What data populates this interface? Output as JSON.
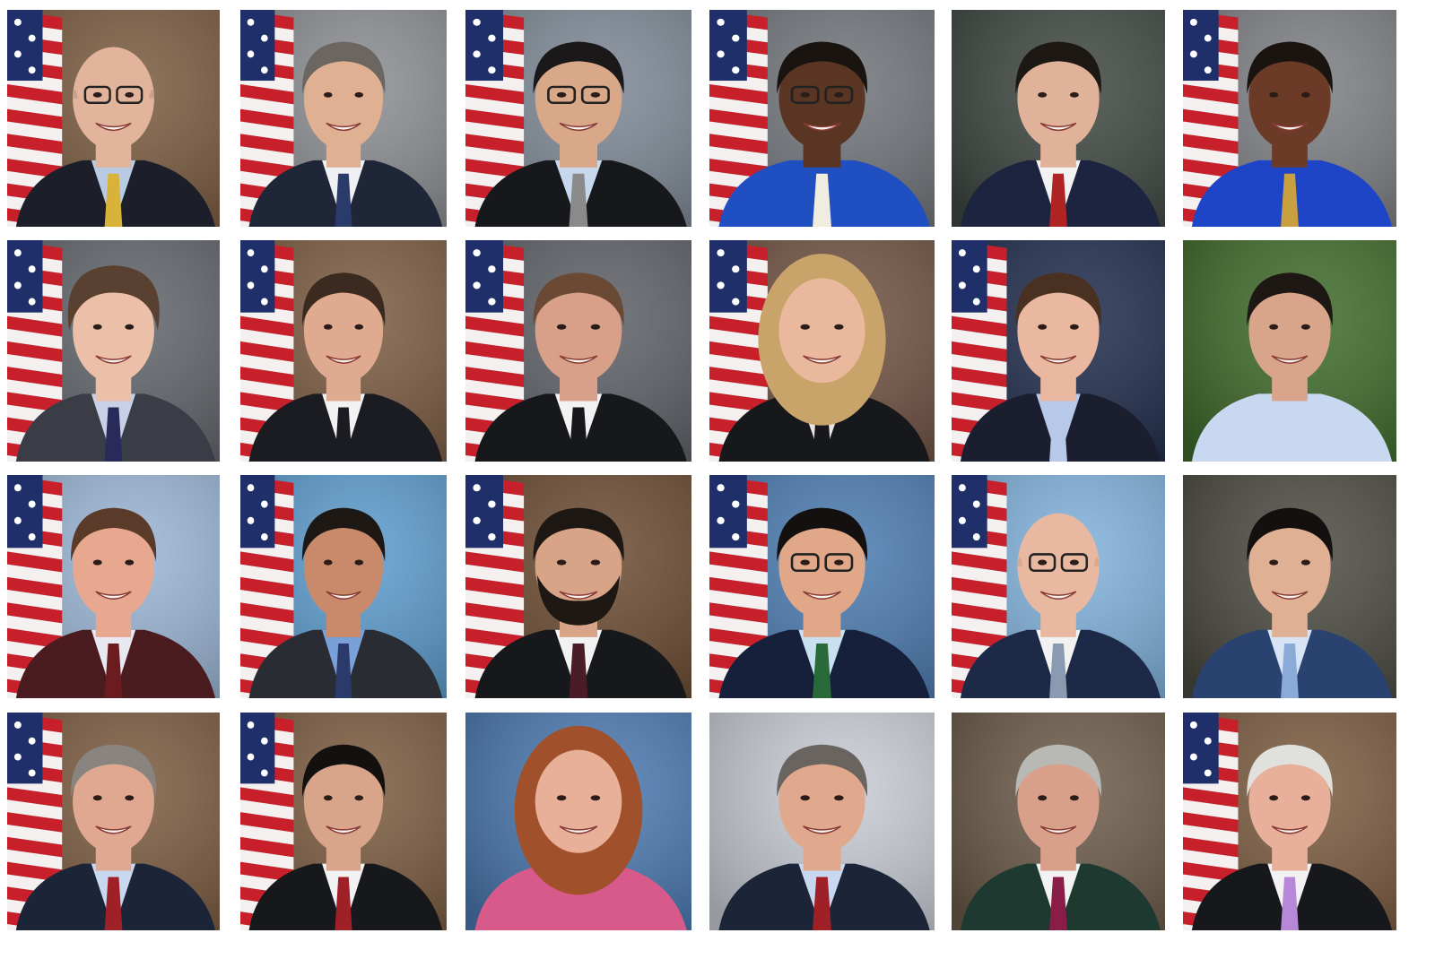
{
  "collage": {
    "columns": 6,
    "rows": 4,
    "background": "#ffffff",
    "portraits": [
      {
        "bg": "#7a5a3e",
        "flag": true,
        "hair": "bald",
        "hairColor": "#c9a08a",
        "skin": "#e2b49c",
        "suit": "#1c1f2a",
        "shirt": "#b9cbe3",
        "tie": "#d9b23a",
        "glasses": true
      },
      {
        "bg": "#8a8c90",
        "flag": true,
        "hair": "short",
        "hairColor": "#6b6660",
        "skin": "#e0b092",
        "suit": "#1e2638",
        "shirt": "#eef0f4",
        "tie": "#2a3a6a",
        "glasses": false
      },
      {
        "bg": "#7d8794",
        "flag": true,
        "hair": "short",
        "hairColor": "#1a1818",
        "skin": "#d9a888",
        "suit": "#16181c",
        "shirt": "#c8d8ec",
        "tie": "#8a8a8a",
        "glasses": true
      },
      {
        "bg": "#6f7378",
        "flag": true,
        "hair": "short",
        "hairColor": "#1a1410",
        "skin": "#5a3524",
        "suit": "#1f4fc0",
        "shirt": "#1f4fc0",
        "tie": "#f0ece0",
        "glasses": true
      },
      {
        "bg": "#3e4640",
        "flag": false,
        "hair": "short",
        "hairColor": "#1e1814",
        "skin": "#e0b29a",
        "suit": "#1c2440",
        "shirt": "#f2f2f2",
        "tie": "#b02424",
        "glasses": false
      },
      {
        "bg": "#7c7e82",
        "flag": true,
        "hair": "short",
        "hairColor": "#1a1410",
        "skin": "#6b3b28",
        "suit": "#1e45c8",
        "shirt": "#1e45c8",
        "tie": "#c8a040",
        "glasses": false
      },
      {
        "bg": "#5f6368",
        "flag": true,
        "hair": "curly",
        "hairColor": "#5a4030",
        "skin": "#ecc0a8",
        "suit": "#3a3d45",
        "shirt": "#c8d0e8",
        "tie": "#2a2a5a",
        "glasses": false
      },
      {
        "bg": "#7a5a40",
        "flag": true,
        "hair": "short",
        "hairColor": "#3a2a20",
        "skin": "#e0aa90",
        "suit": "#1a1c22",
        "shirt": "#f2f2f2",
        "tie": "#1a1c22",
        "glasses": false
      },
      {
        "bg": "#5c5f66",
        "flag": true,
        "hair": "short",
        "hairColor": "#6a4a34",
        "skin": "#d8a088",
        "suit": "#16181c",
        "shirt": "#f2f2f2",
        "tie": "#16181c",
        "glasses": false
      },
      {
        "bg": "#6e5040",
        "flag": true,
        "hair": "long",
        "hairColor": "#c8a46a",
        "skin": "#eab89c",
        "suit": "#16181c",
        "shirt": "#e8e4e0",
        "tie": "#16181c",
        "glasses": false
      },
      {
        "bg": "#1e2a4a",
        "flag": true,
        "hair": "short",
        "hairColor": "#4a3020",
        "skin": "#eab8a0",
        "suit": "#1a1e2e",
        "shirt": "#b8c8e8",
        "tie": "#b8c8e8",
        "glasses": false
      },
      {
        "bg": "#3e6a2a",
        "flag": false,
        "hair": "short",
        "hairColor": "#1e1814",
        "skin": "#d8a48a",
        "suit": "#c8d8f0",
        "shirt": "#c8d8f0",
        "tie": "#c8d8f0",
        "glasses": false
      },
      {
        "bg": "#9ab4d4",
        "flag": true,
        "hair": "short",
        "hairColor": "#5a3a28",
        "skin": "#e8a890",
        "suit": "#4a1c20",
        "shirt": "#e8e8f0",
        "tie": "#6a1c20",
        "glasses": false
      },
      {
        "bg": "#5a9acc",
        "flag": true,
        "hair": "short",
        "hairColor": "#1e1814",
        "skin": "#c88a6a",
        "suit": "#2a2c34",
        "shirt": "#7aa0d8",
        "tie": "#2a3a6a",
        "glasses": false
      },
      {
        "bg": "#6a4a30",
        "flag": true,
        "hair": "beard",
        "hairColor": "#1e1814",
        "skin": "#d8a488",
        "suit": "#16181c",
        "shirt": "#f2f2f2",
        "tie": "#4a1c28",
        "glasses": false
      },
      {
        "bg": "#4a7ab0",
        "flag": true,
        "hair": "short",
        "hairColor": "#141010",
        "skin": "#e0a888",
        "suit": "#16203a",
        "shirt": "#c8e0f0",
        "tie": "#2a6a3a",
        "glasses": true
      },
      {
        "bg": "#7fb0da",
        "flag": true,
        "hair": "bald",
        "hairColor": "#d8a890",
        "skin": "#e8b8a0",
        "suit": "#1c2a48",
        "shirt": "#f2f2f2",
        "tie": "#8a9ab0",
        "glasses": true
      },
      {
        "bg": "#4a4a40",
        "flag": false,
        "hair": "short",
        "hairColor": "#141010",
        "skin": "#e0b094",
        "suit": "#2a4270",
        "shirt": "#d8e4f4",
        "tie": "#8aaad8",
        "glasses": false
      },
      {
        "bg": "#7a5a3e",
        "flag": true,
        "hair": "short",
        "hairColor": "#8a8480",
        "skin": "#e0a890",
        "suit": "#1c2438",
        "shirt": "#c8d8f0",
        "tie": "#a02028",
        "glasses": false
      },
      {
        "bg": "#7a5a3e",
        "flag": true,
        "hair": "short",
        "hairColor": "#141010",
        "skin": "#d8a48a",
        "suit": "#16181c",
        "shirt": "#f2f2f2",
        "tie": "#a02028",
        "glasses": false
      },
      {
        "bg": "#4a78b0",
        "flag": false,
        "hair": "long",
        "hairColor": "#a0502a",
        "skin": "#e8b098",
        "suit": "#d85a8a",
        "shirt": "#d85a8a",
        "tie": "#d85a8a",
        "glasses": false
      },
      {
        "bg": "#c8ccd4",
        "flag": false,
        "hair": "short",
        "hairColor": "#6a6460",
        "skin": "#e0a88c",
        "suit": "#1c2438",
        "shirt": "#c8d8f0",
        "tie": "#a02028",
        "glasses": false
      },
      {
        "bg": "#6a5a48",
        "flag": false,
        "hair": "short",
        "hairColor": "#b8b8b4",
        "skin": "#d8a08a",
        "suit": "#1e3a30",
        "shirt": "#f2f2f2",
        "tie": "#8a1c48",
        "glasses": false
      },
      {
        "bg": "#7a5a3e",
        "flag": true,
        "hair": "short",
        "hairColor": "#e0e0dc",
        "skin": "#e8b09a",
        "suit": "#16181c",
        "shirt": "#f2f2f2",
        "tie": "#b888d8",
        "glasses": false
      }
    ]
  }
}
